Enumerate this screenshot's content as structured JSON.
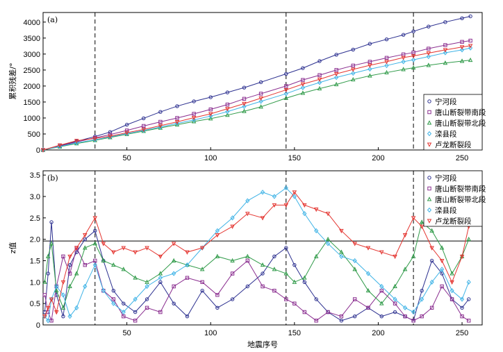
{
  "colors": {
    "宁河段": "#2b2f8f",
    "唐山断裂带南段": "#8a2d8f",
    "唐山断裂带北段": "#2f9a48",
    "滦县段": "#3fb3e6",
    "卢龙断裂段": "#e43530"
  },
  "chart_data": [
    {
      "type": "line",
      "panel_label": "(a)",
      "title": "",
      "xlabel": "",
      "ylabel": "累积残差/°",
      "xlim": [
        0,
        262
      ],
      "ylim": [
        0,
        4300
      ],
      "xticks": [
        50,
        100,
        150,
        200,
        250
      ],
      "yticks": [
        0,
        500,
        1000,
        1500,
        2000,
        2500,
        3000,
        3500,
        4000
      ],
      "vlines": [
        31,
        145,
        221
      ],
      "legend_position": "bottom-right",
      "x": [
        0,
        10,
        20,
        31,
        40,
        50,
        60,
        70,
        80,
        90,
        100,
        110,
        120,
        130,
        145,
        155,
        165,
        175,
        185,
        195,
        205,
        215,
        221,
        230,
        240,
        250,
        255
      ],
      "series": [
        {
          "name": "宁河段",
          "marker": "circle",
          "values": [
            0,
            130,
            270,
            420,
            560,
            790,
            990,
            1190,
            1370,
            1520,
            1650,
            1800,
            1950,
            2120,
            2380,
            2560,
            2780,
            2980,
            3140,
            3320,
            3460,
            3600,
            3710,
            3860,
            4000,
            4120,
            4180
          ]
        },
        {
          "name": "唐山断裂带南段",
          "marker": "square",
          "values": [
            0,
            120,
            250,
            380,
            480,
            610,
            750,
            880,
            1000,
            1130,
            1270,
            1420,
            1600,
            1760,
            2000,
            2190,
            2340,
            2500,
            2640,
            2760,
            2880,
            2990,
            3050,
            3170,
            3280,
            3380,
            3420
          ]
        },
        {
          "name": "唐山断裂带北段",
          "marker": "triangle-up",
          "values": [
            0,
            100,
            200,
            300,
            390,
            490,
            590,
            690,
            790,
            890,
            980,
            1090,
            1210,
            1350,
            1620,
            1780,
            1920,
            2050,
            2200,
            2320,
            2420,
            2520,
            2570,
            2650,
            2720,
            2780,
            2810
          ]
        },
        {
          "name": "滦县段",
          "marker": "diamond",
          "values": [
            0,
            110,
            220,
            320,
            410,
            510,
            610,
            720,
            830,
            940,
            1060,
            1200,
            1360,
            1520,
            1760,
            1950,
            2110,
            2270,
            2400,
            2530,
            2640,
            2760,
            2820,
            2920,
            3040,
            3130,
            3190
          ]
        },
        {
          "name": "卢龙断裂段",
          "marker": "triangle-down",
          "values": [
            0,
            150,
            290,
            360,
            430,
            540,
            640,
            760,
            880,
            1010,
            1130,
            1290,
            1450,
            1620,
            1880,
            2060,
            2210,
            2380,
            2520,
            2650,
            2760,
            2890,
            2940,
            3030,
            3130,
            3220,
            3260
          ]
        }
      ]
    },
    {
      "type": "line",
      "panel_label": "(b)",
      "title": "",
      "xlabel": "地震序号",
      "ylabel": "z值",
      "xlim": [
        0,
        262
      ],
      "ylim": [
        0,
        3.6
      ],
      "xticks": [
        50,
        100,
        150,
        200,
        250
      ],
      "yticks": [
        0,
        0.5,
        1.0,
        1.5,
        2.0,
        2.5,
        3.0,
        3.5
      ],
      "ytick_labels": [
        "0",
        "0.5",
        "1.0",
        "1.5",
        "2.0",
        "2.5",
        "3.0",
        "3.5"
      ],
      "vlines": [
        31,
        145,
        221
      ],
      "hline": 1.96,
      "legend_position": "top-right",
      "x": [
        1,
        3,
        5,
        8,
        12,
        16,
        20,
        25,
        31,
        36,
        42,
        48,
        55,
        62,
        70,
        78,
        86,
        95,
        104,
        113,
        122,
        131,
        138,
        145,
        150,
        156,
        163,
        170,
        178,
        186,
        194,
        202,
        210,
        216,
        221,
        226,
        232,
        238,
        244,
        250,
        254
      ],
      "series": [
        {
          "name": "宁河段",
          "marker": "circle",
          "values": [
            0.3,
            1.2,
            2.4,
            0.7,
            0.2,
            1.4,
            1.7,
            2.0,
            2.2,
            1.5,
            0.8,
            0.5,
            0.3,
            0.6,
            1.0,
            0.5,
            0.2,
            0.8,
            0.4,
            0.6,
            0.9,
            1.2,
            1.6,
            1.8,
            1.4,
            1.0,
            0.6,
            0.3,
            0.1,
            0.2,
            0.4,
            0.2,
            0.3,
            0.2,
            0.1,
            0.8,
            1.5,
            1.2,
            0.6,
            0.4,
            0.6
          ]
        },
        {
          "name": "唐山断裂带南段",
          "marker": "square",
          "values": [
            0.7,
            0.3,
            0.1,
            0.9,
            1.6,
            1.2,
            1.8,
            1.4,
            1.5,
            0.8,
            0.6,
            0.2,
            0.1,
            0.4,
            0.3,
            0.9,
            1.1,
            1.0,
            0.7,
            1.2,
            1.5,
            0.9,
            0.8,
            0.6,
            0.5,
            0.3,
            0.1,
            0.3,
            0.2,
            0.6,
            0.4,
            0.8,
            0.5,
            0.2,
            0.1,
            0.2,
            0.4,
            0.9,
            0.6,
            0.2,
            0.1
          ]
        },
        {
          "name": "唐山断裂带北段",
          "marker": "triangle-up",
          "values": [
            1.0,
            1.6,
            1.9,
            0.8,
            0.4,
            0.9,
            1.2,
            1.8,
            1.9,
            1.5,
            1.4,
            1.3,
            1.1,
            1.0,
            1.2,
            1.5,
            1.4,
            1.3,
            1.6,
            1.5,
            1.6,
            1.4,
            1.3,
            1.2,
            1.0,
            1.1,
            1.6,
            2.0,
            1.7,
            1.3,
            0.8,
            0.5,
            0.9,
            1.3,
            1.6,
            2.4,
            2.2,
            1.8,
            1.2,
            1.6,
            2.0
          ]
        },
        {
          "name": "滦县段",
          "marker": "diamond",
          "values": [
            0.2,
            0.1,
            0.6,
            0.9,
            0.7,
            0.2,
            0.4,
            0.9,
            1.4,
            0.8,
            0.5,
            0.3,
            0.6,
            0.9,
            1.1,
            1.2,
            1.4,
            1.8,
            2.2,
            2.5,
            2.9,
            3.1,
            3.0,
            3.2,
            3.0,
            2.6,
            2.2,
            1.9,
            1.6,
            1.5,
            1.2,
            0.9,
            0.6,
            0.4,
            0.3,
            0.6,
            1.0,
            1.3,
            0.8,
            0.6,
            1.0
          ]
        },
        {
          "name": "卢龙断裂段",
          "marker": "triangle-down",
          "values": [
            0.2,
            0.4,
            0.6,
            0.3,
            1.0,
            1.6,
            1.8,
            2.1,
            2.5,
            1.9,
            1.7,
            1.8,
            1.7,
            1.8,
            1.6,
            1.9,
            1.7,
            1.8,
            2.1,
            2.3,
            2.6,
            2.5,
            2.8,
            2.8,
            3.1,
            2.8,
            2.7,
            2.6,
            2.2,
            1.9,
            1.8,
            1.7,
            1.6,
            2.1,
            2.5,
            2.3,
            1.8,
            1.5,
            1.0,
            1.6,
            2.3
          ]
        }
      ]
    }
  ]
}
